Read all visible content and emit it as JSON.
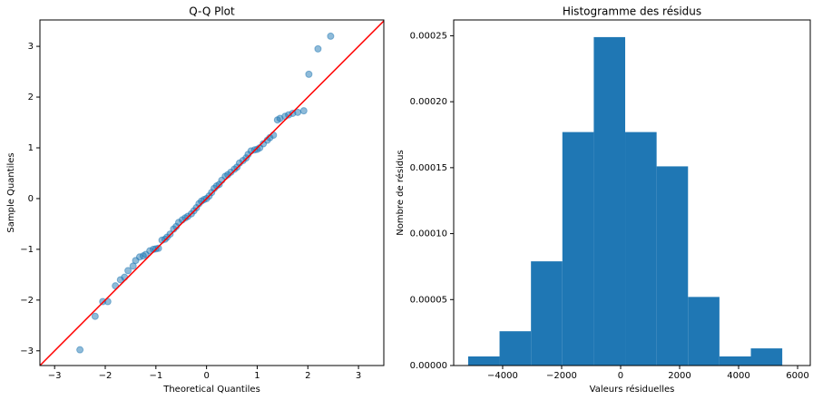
{
  "chart_data": [
    {
      "type": "scatter",
      "title": "Q-Q Plot",
      "x_label": "Theoretical Quantiles",
      "y_label": "Sample Quantiles",
      "x": [
        -2.5,
        -2.2,
        -2.05,
        -1.95,
        -1.8,
        -1.7,
        -1.62,
        -1.55,
        -1.45,
        -1.4,
        -1.32,
        -1.25,
        -1.2,
        -1.12,
        -1.05,
        -1.0,
        -0.95,
        -0.88,
        -0.82,
        -0.78,
        -0.72,
        -0.65,
        -0.6,
        -0.55,
        -0.48,
        -0.42,
        -0.37,
        -0.3,
        -0.25,
        -0.2,
        -0.15,
        -0.1,
        -0.05,
        0.0,
        0.05,
        0.1,
        0.15,
        0.2,
        0.25,
        0.3,
        0.37,
        0.42,
        0.48,
        0.55,
        0.6,
        0.65,
        0.72,
        0.78,
        0.82,
        0.88,
        0.95,
        1.0,
        1.05,
        1.12,
        1.2,
        1.25,
        1.32,
        1.4,
        1.45,
        1.55,
        1.62,
        1.7,
        1.8,
        1.92,
        2.02,
        2.2,
        2.45
      ],
      "values": [
        -2.98,
        -2.32,
        -2.03,
        -2.03,
        -1.72,
        -1.6,
        -1.55,
        -1.42,
        -1.33,
        -1.22,
        -1.15,
        -1.13,
        -1.1,
        -1.03,
        -1.0,
        -0.99,
        -0.98,
        -0.82,
        -0.8,
        -0.76,
        -0.7,
        -0.6,
        -0.55,
        -0.47,
        -0.42,
        -0.38,
        -0.35,
        -0.3,
        -0.24,
        -0.18,
        -0.1,
        -0.05,
        -0.02,
        0.0,
        0.05,
        0.12,
        0.2,
        0.25,
        0.28,
        0.36,
        0.44,
        0.47,
        0.52,
        0.58,
        0.62,
        0.7,
        0.75,
        0.8,
        0.87,
        0.94,
        0.96,
        0.97,
        1.0,
        1.08,
        1.15,
        1.2,
        1.25,
        1.55,
        1.58,
        1.62,
        1.65,
        1.68,
        1.7,
        1.73,
        2.45,
        2.95,
        3.2
      ],
      "color": "#1f77b4",
      "reference_line": {
        "color": "#ff0000"
      },
      "xlim": [
        -3.29,
        3.5
      ],
      "ylim": [
        -3.29,
        3.52
      ],
      "xticks": [
        {
          "value": -3,
          "label": "−3"
        },
        {
          "value": -2,
          "label": "−2"
        },
        {
          "value": -1,
          "label": "−1"
        },
        0,
        1,
        2,
        3
      ],
      "yticks": [
        {
          "value": -3,
          "label": "−3"
        },
        {
          "value": -2,
          "label": "−2"
        },
        {
          "value": -1,
          "label": "−1"
        },
        0,
        1,
        2,
        3
      ]
    },
    {
      "type": "histogram",
      "title": "Histogramme des résidus",
      "x_label": "Valeurs résiduelles",
      "y_label": "Nombre de résidus",
      "bins": [
        -5170,
        -4105,
        -3040,
        -1975,
        -910,
        155,
        1220,
        2285,
        3350,
        4415,
        5480
      ],
      "values": [
        6.9e-06,
        2.6e-05,
        7.9e-05,
        0.000177,
        0.000249,
        0.000177,
        0.000151,
        5.2e-05,
        6.9e-06,
        1.3e-05
      ],
      "color": "#1f77b4",
      "xlim": [
        -5660,
        6430
      ],
      "ylim": [
        0,
        0.000262
      ],
      "xticks": [
        {
          "value": -4000,
          "label": "−4000"
        },
        {
          "value": -2000,
          "label": "−2000"
        },
        0,
        2000,
        4000,
        6000
      ],
      "yticks": [
        {
          "value": 0,
          "label": "0.00000"
        },
        {
          "value": 5e-05,
          "label": "0.00005"
        },
        {
          "value": 0.0001,
          "label": "0.00010"
        },
        {
          "value": 0.00015,
          "label": "0.00015"
        },
        {
          "value": 0.0002,
          "label": "0.00020"
        },
        {
          "value": 0.00025,
          "label": "0.00025"
        }
      ]
    }
  ]
}
